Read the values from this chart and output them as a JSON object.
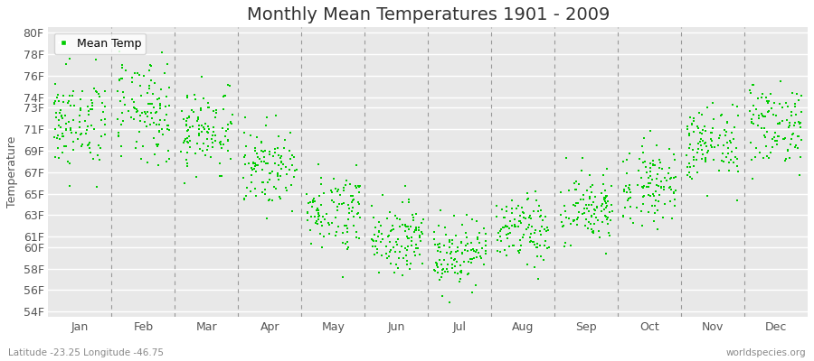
{
  "title": "Monthly Mean Temperatures 1901 - 2009",
  "ylabel": "Temperature",
  "xlabel": "",
  "months": [
    "Jan",
    "Feb",
    "Mar",
    "Apr",
    "May",
    "Jun",
    "Jul",
    "Aug",
    "Sep",
    "Oct",
    "Nov",
    "Dec"
  ],
  "ytick_labels": [
    "54F",
    "56F",
    "58F",
    "60F",
    "61F",
    "63F",
    "65F",
    "67F",
    "69F",
    "71F",
    "73F",
    "74F",
    "76F",
    "78F",
    "80F"
  ],
  "ytick_values": [
    54,
    56,
    58,
    60,
    61,
    63,
    65,
    67,
    69,
    71,
    73,
    74,
    76,
    78,
    80
  ],
  "ylim": [
    53.5,
    80.5
  ],
  "dot_color": "#00cc00",
  "dot_size": 3,
  "bg_color": "#ffffff",
  "plot_bg_color": "#e8e8e8",
  "grid_color": "#ffffff",
  "dashed_line_color": "#999999",
  "title_fontsize": 14,
  "axis_fontsize": 9,
  "legend_label": "Mean Temp",
  "subtitle": "Latitude -23.25 Longitude -46.75",
  "watermark": "worldspecies.org",
  "monthly_means": [
    71.5,
    72.5,
    71.0,
    67.5,
    63.5,
    61.0,
    59.5,
    61.5,
    63.5,
    66.0,
    69.5,
    71.5
  ],
  "monthly_stds": [
    2.2,
    2.4,
    2.0,
    1.8,
    1.8,
    1.6,
    1.6,
    1.6,
    1.8,
    1.8,
    1.8,
    2.0
  ],
  "n_years": 109
}
